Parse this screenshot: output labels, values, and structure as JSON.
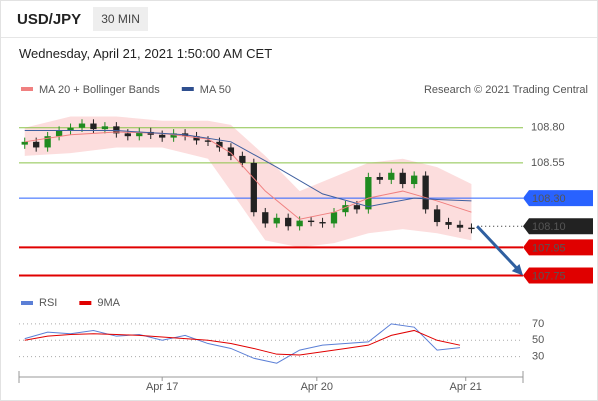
{
  "header": {
    "symbol": "USD/JPY",
    "timeframe": "30 MIN",
    "subtitle": "Wednesday, April 21, 2021 1:50:00 AM CET"
  },
  "chart_data": [
    {
      "type": "candlestick",
      "legend": [
        {
          "name": "MA 20 + Bollinger Bands",
          "color": "#f08080"
        },
        {
          "name": "MA 50",
          "color": "#2f4f8f"
        }
      ],
      "credit": "Research © 2021 Trading Central",
      "xlim": [
        -0.5,
        43.5
      ],
      "ylim": [
        107.64,
        108.99
      ],
      "xticks": [
        {
          "value": 12,
          "label": "Apr 17"
        },
        {
          "value": 25.5,
          "label": "Apr 20"
        },
        {
          "value": 38.5,
          "label": "Apr 21"
        }
      ],
      "up_color": "#1f8a1f",
      "down_color": "#222222",
      "open": [
        108.68,
        108.7,
        108.66,
        108.74,
        108.78,
        108.8,
        108.83,
        108.79,
        108.81,
        108.76,
        108.74,
        108.77,
        108.75,
        108.73,
        108.76,
        108.74,
        108.71,
        108.7,
        108.66,
        108.6,
        108.55,
        108.2,
        108.12,
        108.16,
        108.1,
        108.14,
        108.13,
        108.12,
        108.2,
        108.25,
        108.22,
        108.45,
        108.43,
        108.48,
        108.4,
        108.46,
        108.22,
        108.13,
        108.11,
        108.09
      ],
      "high": [
        108.73,
        108.73,
        108.77,
        108.81,
        108.83,
        108.86,
        108.86,
        108.84,
        108.84,
        108.79,
        108.8,
        108.8,
        108.78,
        108.79,
        108.79,
        108.77,
        108.74,
        108.73,
        108.69,
        108.63,
        108.58,
        108.23,
        108.19,
        108.19,
        108.17,
        108.17,
        108.16,
        108.23,
        108.28,
        108.28,
        108.48,
        108.48,
        108.51,
        108.51,
        108.49,
        108.49,
        108.25,
        108.16,
        108.14,
        108.12
      ],
      "low": [
        108.65,
        108.63,
        108.63,
        108.71,
        108.75,
        108.77,
        108.76,
        108.76,
        108.73,
        108.71,
        108.71,
        108.72,
        108.7,
        108.7,
        108.71,
        108.68,
        108.67,
        108.63,
        108.57,
        108.52,
        108.17,
        108.09,
        108.09,
        108.07,
        108.07,
        108.1,
        108.09,
        108.09,
        108.17,
        108.19,
        108.19,
        108.4,
        108.4,
        108.37,
        108.37,
        108.19,
        108.1,
        108.08,
        108.06,
        108.05
      ],
      "close": [
        108.7,
        108.66,
        108.74,
        108.78,
        108.8,
        108.83,
        108.79,
        108.81,
        108.76,
        108.74,
        108.77,
        108.75,
        108.73,
        108.76,
        108.74,
        108.71,
        108.7,
        108.66,
        108.6,
        108.55,
        108.2,
        108.12,
        108.16,
        108.1,
        108.14,
        108.13,
        108.12,
        108.2,
        108.25,
        108.22,
        108.45,
        108.43,
        108.48,
        108.4,
        108.46,
        108.22,
        108.13,
        108.11,
        108.09,
        108.08
      ],
      "bands": {
        "color": "#fbd4d4",
        "x": [
          0,
          4,
          8,
          12,
          16,
          18,
          21,
          24,
          27,
          30,
          33,
          36,
          39
        ],
        "upper": [
          108.8,
          108.88,
          108.88,
          108.85,
          108.85,
          108.82,
          108.6,
          108.35,
          108.45,
          108.55,
          108.58,
          108.52,
          108.4
        ],
        "lower": [
          108.6,
          108.62,
          108.66,
          108.66,
          108.58,
          108.35,
          108.0,
          107.95,
          107.98,
          108.05,
          108.08,
          108.05,
          108.0
        ]
      },
      "series": [
        {
          "name": "MA 20",
          "color": "#f08080",
          "x": [
            0,
            4,
            8,
            12,
            16,
            18,
            21,
            24,
            27,
            30,
            33,
            36,
            39
          ],
          "values": [
            108.7,
            108.75,
            108.77,
            108.76,
            108.72,
            108.62,
            108.35,
            108.15,
            108.2,
            108.3,
            108.35,
            108.28,
            108.2
          ]
        },
        {
          "name": "MA 50",
          "color": "#3f5f9f",
          "x": [
            0,
            8,
            14,
            18,
            22,
            26,
            30,
            34,
            36,
            39
          ],
          "values": [
            108.78,
            108.78,
            108.75,
            108.7,
            108.52,
            108.33,
            108.24,
            108.3,
            108.29,
            108.28
          ]
        }
      ],
      "levels": [
        {
          "value": 108.8,
          "label": "108.80",
          "color": "#8bc34a",
          "style": "plain"
        },
        {
          "value": 108.55,
          "label": "108.55",
          "color": "#8bc34a",
          "style": "plain"
        },
        {
          "value": 108.3,
          "label": "108.30",
          "color": "#2962ff",
          "style": "tag"
        },
        {
          "value": 108.1,
          "label": "108.10",
          "color": "#222222",
          "style": "dotted-tag"
        },
        {
          "value": 107.95,
          "label": "107.95",
          "color": "#e00000",
          "style": "tag"
        },
        {
          "value": 107.75,
          "label": "107.75",
          "color": "#e00000",
          "style": "tag"
        }
      ],
      "arrow": {
        "from": [
          39.5,
          108.1
        ],
        "to": [
          43.5,
          107.75
        ],
        "color": "#2f5fa0"
      }
    },
    {
      "type": "line",
      "ylim": [
        10,
        76
      ],
      "yticks": [
        70,
        50,
        30
      ],
      "xlim": [
        -0.5,
        43.5
      ],
      "series": [
        {
          "name": "RSI",
          "color": "#5b7fd6",
          "x": [
            0,
            2,
            4,
            6,
            8,
            10,
            12,
            14,
            16,
            18,
            20,
            22,
            24,
            26,
            28,
            30,
            32,
            34,
            36,
            38
          ],
          "values": [
            52,
            60,
            58,
            62,
            55,
            57,
            50,
            56,
            46,
            40,
            28,
            22,
            38,
            44,
            46,
            48,
            70,
            66,
            38,
            41
          ]
        },
        {
          "name": "9MA",
          "color": "#e00000",
          "x": [
            0,
            2,
            4,
            6,
            8,
            10,
            12,
            14,
            16,
            18,
            20,
            22,
            24,
            26,
            28,
            30,
            32,
            34,
            36,
            38
          ],
          "values": [
            50,
            55,
            57,
            58,
            57,
            56,
            54,
            52,
            50,
            46,
            40,
            33,
            32,
            36,
            40,
            44,
            56,
            62,
            50,
            44
          ]
        }
      ]
    }
  ]
}
